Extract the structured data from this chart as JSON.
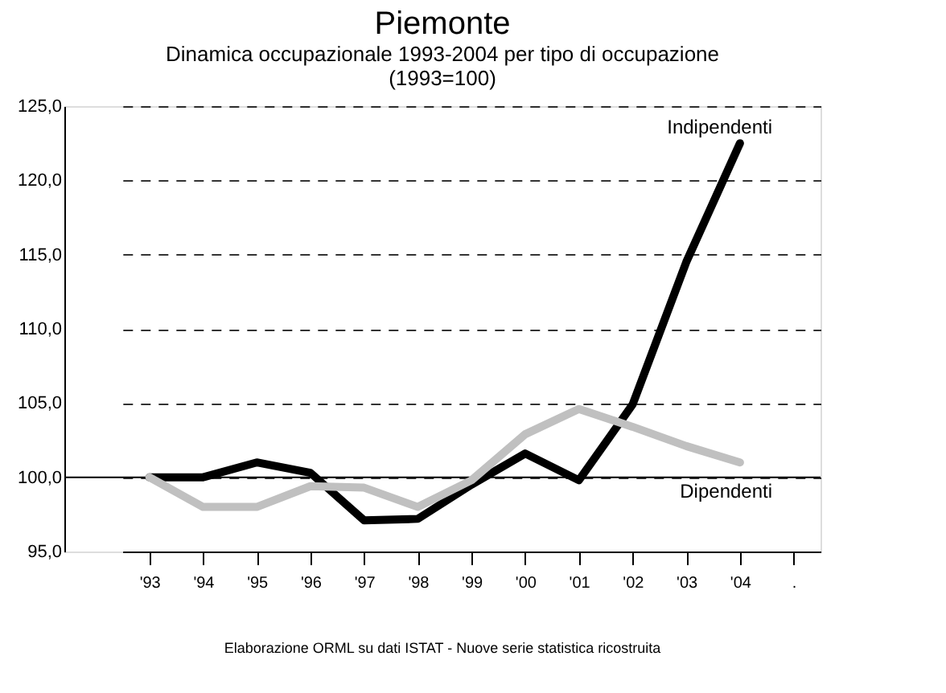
{
  "chart_data": {
    "type": "line",
    "title": "Piemonte",
    "subtitle": "Dinamica occupazionale 1993-2004 per tipo di occupazione",
    "annotations": [
      "(1993=100)",
      "Elaborazione ORML su dati ISTAT - Nuove serie statistica ricostruita"
    ],
    "categories": [
      "'93",
      "'94",
      "'95",
      "'96",
      "'97",
      "'98",
      "'99",
      "'00",
      "'01",
      "'02",
      "'03",
      "'04",
      "."
    ],
    "series": [
      {
        "name": "Indipendenti",
        "color": "#000000",
        "values": [
          100.0,
          100.0,
          101.0,
          100.3,
          97.1,
          97.2,
          99.5,
          101.6,
          99.8,
          104.9,
          114.5,
          122.5,
          null
        ]
      },
      {
        "name": "Dipendenti",
        "color": "#c0c0c0",
        "values": [
          100.0,
          98.0,
          98.0,
          99.4,
          99.3,
          98.0,
          99.8,
          102.9,
          104.6,
          103.4,
          102.1,
          101.0,
          null
        ]
      }
    ],
    "ylim": [
      95,
      125
    ],
    "yticks": [
      {
        "value": 95,
        "label": "95,0"
      },
      {
        "value": 100,
        "label": "100,0"
      },
      {
        "value": 105,
        "label": "105,0"
      },
      {
        "value": 110,
        "label": "110,0"
      },
      {
        "value": 115,
        "label": "115,0"
      },
      {
        "value": 120,
        "label": "120,0"
      },
      {
        "value": 125,
        "label": "125,0"
      }
    ],
    "ref_lines": [
      {
        "axis": "y",
        "value": 100,
        "color": "#000000",
        "line_style": "solid"
      }
    ],
    "grid": "y",
    "line_style": "solid",
    "marker": "none"
  }
}
